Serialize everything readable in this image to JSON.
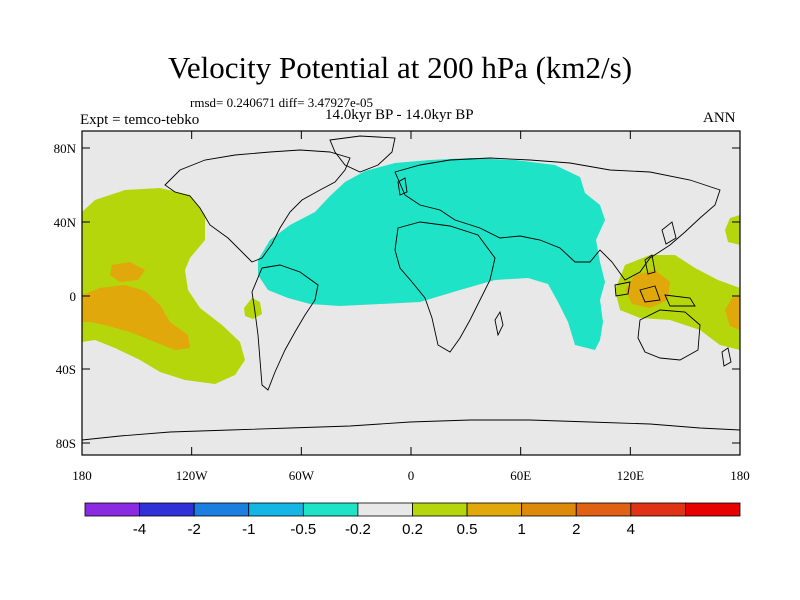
{
  "title": "Velocity Potential at 200 hPa (km2/s)",
  "stats": "rmsd= 0.240671 diff= 3.47927e-05",
  "period": "14.0kyr BP - 14.0kyr BP",
  "experiment": "Expt = temco-tebko",
  "season": "ANN",
  "colors": {
    "background": "#e8e8e8",
    "land_outline": "#000000",
    "neg_weak": "#1ee3c6",
    "pos_weak": "#b4d60a",
    "pos_mid": "#e0a80a"
  },
  "map": {
    "lat_ticks": [
      "80N",
      "40N",
      "0",
      "40S",
      "80S"
    ],
    "lon_ticks": [
      "180",
      "120W",
      "60W",
      "0",
      "60E",
      "120E",
      "180"
    ]
  },
  "colorbar": {
    "colors": [
      "#8a2be2",
      "#3030d8",
      "#1a7fe0",
      "#14b6e6",
      "#1ee3c6",
      "#e8e8e8",
      "#b4d60a",
      "#e0a80a",
      "#dd8a0a",
      "#e06014",
      "#e03214",
      "#e60000"
    ],
    "labels": [
      "-4",
      "-2",
      "-1",
      "-0.5",
      "-0.2",
      "0.2",
      "0.5",
      "1",
      "2",
      "4"
    ]
  }
}
